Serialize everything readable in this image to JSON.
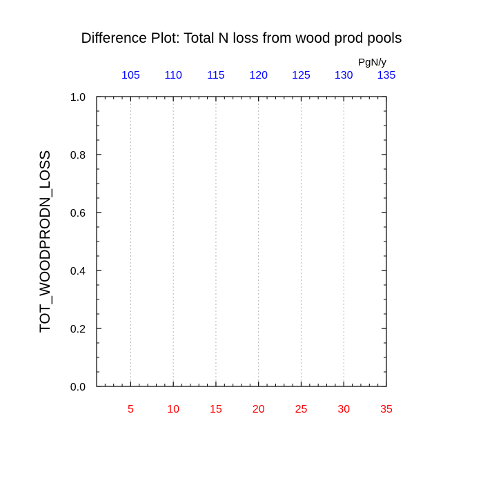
{
  "chart_data": {
    "type": "line",
    "title": "Difference Plot: Total N loss from wood prod pools",
    "ylabel": "TOT_WOODPRODN_LOSS",
    "units_label": "PgN/y",
    "xlim": [
      1,
      35
    ],
    "ylim": [
      0,
      1
    ],
    "x_ticks": [
      5,
      10,
      15,
      20,
      25,
      30,
      35
    ],
    "x_tick_labels": [
      "5",
      "10",
      "15",
      "20",
      "25",
      "30",
      "35"
    ],
    "x_minor_step": 1,
    "top_axis_tick_labels": [
      "105",
      "110",
      "115",
      "120",
      "125",
      "130",
      "135"
    ],
    "y_ticks": [
      0,
      0.2,
      0.4,
      0.6,
      0.8,
      1.0
    ],
    "y_tick_labels": [
      "0.0",
      "0.2",
      "0.4",
      "0.6",
      "0.8",
      "1.0"
    ],
    "y_minor_step": 0.05,
    "vertical_gridlines": true,
    "gridline_style": "dotted",
    "series": [],
    "colors": {
      "bottom_axis_labels": "#ff0000",
      "top_axis_labels": "#0000ff",
      "axis_labels_left": "#000000",
      "frame": "#000000",
      "grid": "#b4b4b4"
    }
  }
}
